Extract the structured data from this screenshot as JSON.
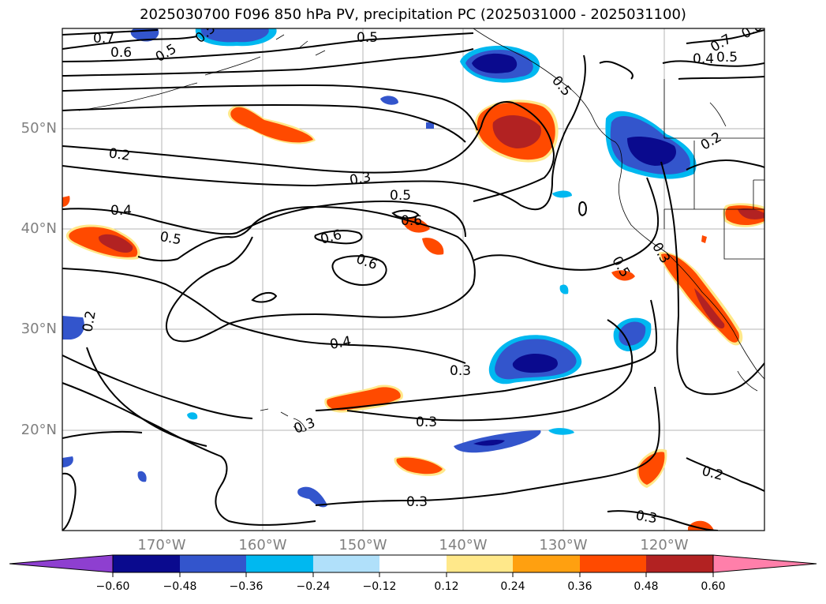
{
  "title": "2025030700 F096 850 hPa PV, precipitation PC (2025031000 - 2025031100)",
  "map": {
    "lat_labels": [
      "50°N",
      "40°N",
      "30°N",
      "20°N"
    ],
    "lon_labels": [
      "170°W",
      "160°W",
      "150°W",
      "140°W",
      "130°W",
      "120°W"
    ],
    "contour_labels": [
      "0.7",
      "0.6",
      "0.5",
      "0.5",
      "0.5",
      "0.7",
      "0.8",
      "0.4",
      "0.5",
      "0.5",
      "0.2",
      "0.3",
      "0.5",
      "0.4",
      "0.6",
      "0.6",
      "0.5",
      "0.6",
      "0.5",
      "0.3",
      "0.2",
      "0.2",
      "0.4",
      "0.3",
      "0.3",
      "0.3",
      "0.3",
      "0.2",
      "0.3"
    ]
  },
  "colorbar": {
    "colors": [
      "#8e3fd0",
      "#0a0a8e",
      "#3355cc",
      "#00b8f0",
      "#b0e0fa",
      "#ffffff",
      "#ffe88a",
      "#ffa010",
      "#ff4a00",
      "#b22222",
      "#ff7faa"
    ],
    "tick_labels": [
      "−0.60",
      "−0.48",
      "−0.36",
      "−0.24",
      "−0.12",
      "0.12",
      "0.24",
      "0.36",
      "0.48",
      "0.60"
    ]
  }
}
